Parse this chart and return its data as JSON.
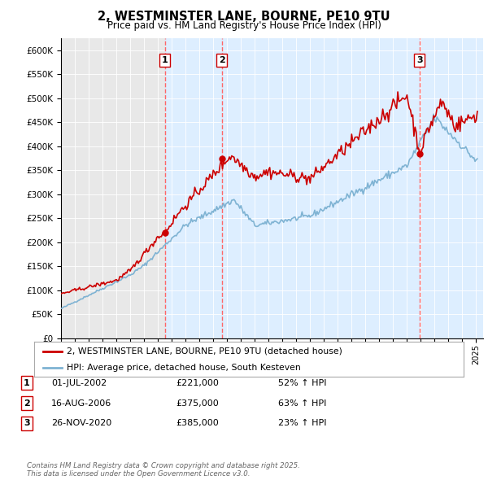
{
  "title": "2, WESTMINSTER LANE, BOURNE, PE10 9TU",
  "subtitle": "Price paid vs. HM Land Registry's House Price Index (HPI)",
  "legend_line1": "2, WESTMINSTER LANE, BOURNE, PE10 9TU (detached house)",
  "legend_line2": "HPI: Average price, detached house, South Kesteven",
  "footnote": "Contains HM Land Registry data © Crown copyright and database right 2025.\nThis data is licensed under the Open Government Licence v3.0.",
  "transactions": [
    {
      "num": 1,
      "date": "01-JUL-2002",
      "price": 221000,
      "pct": "52%",
      "dir": "↑"
    },
    {
      "num": 2,
      "date": "16-AUG-2006",
      "price": 375000,
      "pct": "63%",
      "dir": "↑"
    },
    {
      "num": 3,
      "date": "26-NOV-2020",
      "price": 385000,
      "pct": "23%",
      "dir": "↑"
    }
  ],
  "vline_x": [
    2002.5,
    2006.625,
    2020.9
  ],
  "sale_points": [
    [
      2002.5,
      221000
    ],
    [
      2006.625,
      375000
    ],
    [
      2020.9,
      385000
    ]
  ],
  "ylim": [
    0,
    625000
  ],
  "xlim": [
    1995.0,
    2025.5
  ],
  "yticks": [
    0,
    50000,
    100000,
    150000,
    200000,
    250000,
    300000,
    350000,
    400000,
    450000,
    500000,
    550000,
    600000
  ],
  "ytick_labels": [
    "£0",
    "£50K",
    "£100K",
    "£150K",
    "£200K",
    "£250K",
    "£300K",
    "£350K",
    "£400K",
    "£450K",
    "£500K",
    "£550K",
    "£600K"
  ],
  "background_color": "#ffffff",
  "plot_bg_color": "#e8e8e8",
  "red_color": "#cc0000",
  "blue_color": "#7fb3d3",
  "vline_color": "#ff6666",
  "shade_color": "#ddeeff"
}
